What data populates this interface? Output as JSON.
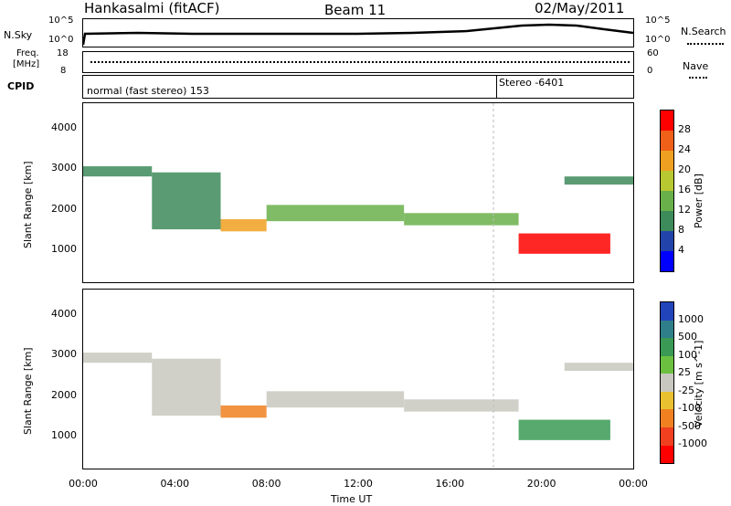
{
  "header": {
    "station": "Hankasalmi (fitACF)",
    "beam": "Beam 11",
    "date": "02/May/2011"
  },
  "noise_panel": {
    "left_label": "N.Sky",
    "left_ticks": [
      "10^5",
      "10^0"
    ],
    "right_ticks": [
      "10^5",
      "10^0"
    ],
    "right_label": "N.Search"
  },
  "freq_panel": {
    "left_label_line1": "Freq.",
    "left_label_line2": "[MHz]",
    "left_ticks": [
      "18",
      "8"
    ],
    "right_ticks": [
      "60",
      "0"
    ],
    "right_label": "Nave"
  },
  "cpid_panel": {
    "label": "CPID",
    "mode1": "normal (fast stereo) 153",
    "mode2": "Stereo -6401"
  },
  "power_panel": {
    "ylabel": "Slant Range [km]",
    "yticks": [
      "4000",
      "3000",
      "2000",
      "1000"
    ],
    "colorbar_label": "Power [dB]",
    "colorbar_ticks": [
      "28",
      "24",
      "20",
      "16",
      "12",
      "8",
      "4"
    ],
    "colors": [
      "#0000ff",
      "#2244aa",
      "#3d8a5a",
      "#6ab04a",
      "#b8c830",
      "#f0a020",
      "#f06018",
      "#ff0000"
    ]
  },
  "velocity_panel": {
    "ylabel": "Slant Range [km]",
    "yticks": [
      "4000",
      "3000",
      "2000",
      "1000"
    ],
    "colorbar_label": "Velocity [m s^-1]",
    "colorbar_ticks": [
      "1000",
      "500",
      "100",
      "25",
      "-25",
      "-100",
      "-500",
      "-1000"
    ],
    "colors": [
      "#2244bb",
      "#2f7f8a",
      "#3a9a55",
      "#6cc040",
      "#c8c8c0",
      "#e8c030",
      "#f08020",
      "#f04020",
      "#ff0000"
    ]
  },
  "xaxis": {
    "label": "Time UT",
    "ticks": [
      "00:00",
      "04:00",
      "08:00",
      "12:00",
      "16:00",
      "20:00",
      "00:00"
    ]
  },
  "chart_data": {
    "type": "heatmap",
    "title": "Hankasalmi (fitACF) Beam 11 02/May/2011",
    "xlabel": "Time UT",
    "ylabel": "Slant Range [km]",
    "xlim_hours": [
      0,
      24
    ],
    "ylim_km": [
      200,
      4600
    ],
    "power_bands": [
      {
        "t_start": 0,
        "t_end": 3,
        "range_start": 2800,
        "range_end": 3050,
        "power_db": 10
      },
      {
        "t_start": 3,
        "t_end": 6,
        "range_start": 1500,
        "range_end": 2900,
        "power_db": 10
      },
      {
        "t_start": 6,
        "t_end": 8,
        "range_start": 1450,
        "range_end": 1750,
        "power_db": 22
      },
      {
        "t_start": 8,
        "t_end": 14,
        "range_start": 1700,
        "range_end": 2100,
        "power_db": 12
      },
      {
        "t_start": 14,
        "t_end": 19,
        "range_start": 1600,
        "range_end": 1900,
        "power_db": 14
      },
      {
        "t_start": 19,
        "t_end": 23,
        "range_start": 900,
        "range_end": 1400,
        "power_db": 28
      },
      {
        "t_start": 21,
        "t_end": 24,
        "range_start": 2600,
        "range_end": 2800,
        "power_db": 8
      }
    ],
    "velocity_bands": [
      {
        "t_start": 0,
        "t_end": 3,
        "range_start": 2800,
        "range_end": 3050,
        "velocity": 0
      },
      {
        "t_start": 3,
        "t_end": 6,
        "range_start": 1500,
        "range_end": 2900,
        "velocity": 0
      },
      {
        "t_start": 6,
        "t_end": 8,
        "range_start": 1450,
        "range_end": 1750,
        "velocity": -300
      },
      {
        "t_start": 8,
        "t_end": 14,
        "range_start": 1700,
        "range_end": 2100,
        "velocity": 0
      },
      {
        "t_start": 14,
        "t_end": 19,
        "range_start": 1600,
        "range_end": 1900,
        "velocity": 0
      },
      {
        "t_start": 19,
        "t_end": 23,
        "range_start": 900,
        "range_end": 1400,
        "velocity": 200
      },
      {
        "t_start": 21,
        "t_end": 24,
        "range_start": 2600,
        "range_end": 2800,
        "velocity": 0
      }
    ]
  }
}
